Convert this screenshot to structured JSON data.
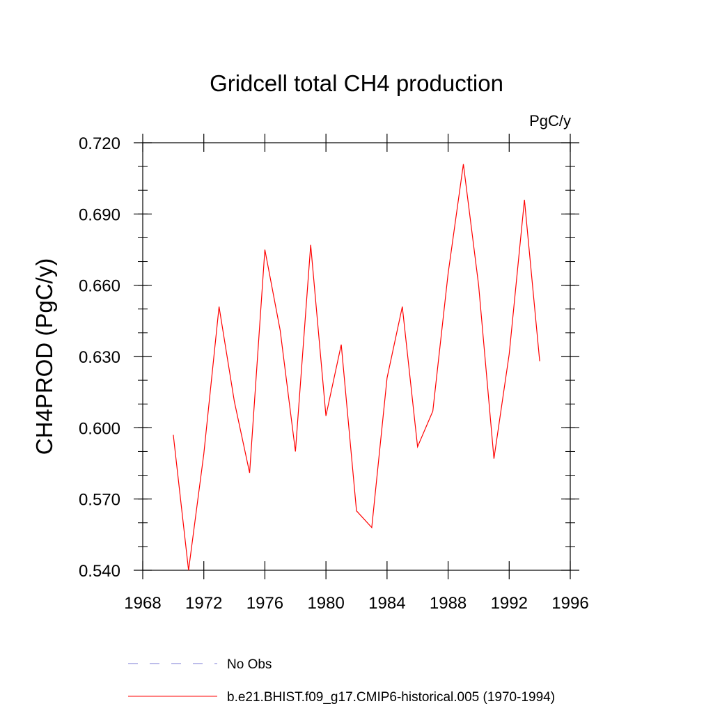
{
  "chart_data": {
    "type": "line",
    "title": "Gridcell total CH4 production",
    "units_label": "PgC/y",
    "xlabel": "",
    "ylabel": "CH4PROD  (PgC/y)",
    "xlim": [
      1968,
      1996
    ],
    "ylim": [
      0.54,
      0.72
    ],
    "x_ticks": [
      1968,
      1972,
      1976,
      1980,
      1984,
      1988,
      1992,
      1996
    ],
    "x_tick_labels": [
      "1968",
      "1972",
      "1976",
      "1980",
      "1984",
      "1988",
      "1992",
      "1996"
    ],
    "y_ticks": [
      0.54,
      0.57,
      0.6,
      0.63,
      0.66,
      0.69,
      0.72
    ],
    "y_tick_labels": [
      "0.540",
      "0.570",
      "0.600",
      "0.630",
      "0.660",
      "0.690",
      "0.720"
    ],
    "grid": false,
    "legend_position": "bottom",
    "series": [
      {
        "name": "b.e21.BHIST.f09_g17.CMIP6-historical.005 (1970-1994)",
        "color": "#ff0000",
        "x": [
          1970,
          1971,
          1972,
          1973,
          1974,
          1975,
          1976,
          1977,
          1978,
          1979,
          1980,
          1981,
          1982,
          1983,
          1984,
          1985,
          1986,
          1987,
          1988,
          1989,
          1990,
          1991,
          1992,
          1993,
          1994
        ],
        "y": [
          0.597,
          0.54,
          0.589,
          0.651,
          0.611,
          0.581,
          0.675,
          0.641,
          0.59,
          0.677,
          0.605,
          0.635,
          0.565,
          0.558,
          0.621,
          0.651,
          0.592,
          0.607,
          0.665,
          0.711,
          0.66,
          0.587,
          0.631,
          0.696,
          0.628
        ]
      }
    ],
    "legend": [
      {
        "label": "No Obs",
        "color": "#7b7bd6",
        "style": "dashed"
      },
      {
        "label": "b.e21.BHIST.f09_g17.CMIP6-historical.005 (1970-1994)",
        "color": "#ff0000",
        "style": "solid"
      }
    ]
  }
}
